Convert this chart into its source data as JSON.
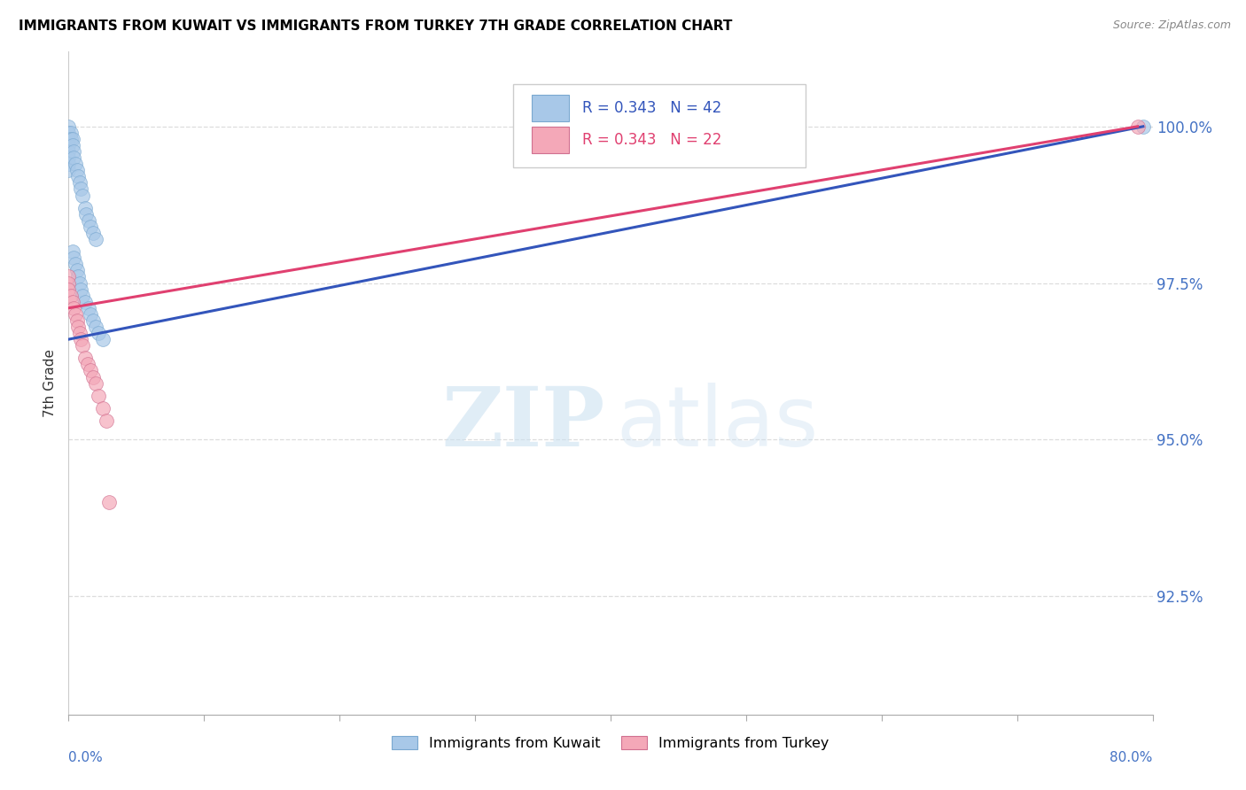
{
  "title": "IMMIGRANTS FROM KUWAIT VS IMMIGRANTS FROM TURKEY 7TH GRADE CORRELATION CHART",
  "source": "Source: ZipAtlas.com",
  "ylabel": "7th Grade",
  "kuwait_R": 0.343,
  "kuwait_N": 42,
  "turkey_R": 0.343,
  "turkey_N": 22,
  "kuwait_color": "#a8c8e8",
  "turkey_color": "#f4a8b8",
  "kuwait_line_color": "#3355bb",
  "turkey_line_color": "#e04070",
  "xlim": [
    0.0,
    0.8
  ],
  "ylim": [
    0.906,
    1.012
  ],
  "yticks": [
    0.925,
    0.95,
    0.975,
    1.0
  ],
  "ytick_labels": [
    "92.5%",
    "95.0%",
    "97.5%",
    "100.0%"
  ],
  "grid_color": "#dddddd",
  "legend_kuwait": "Immigrants from Kuwait",
  "legend_turkey": "Immigrants from Turkey",
  "kuwait_x": [
    0.0,
    0.0,
    0.0,
    0.0,
    0.0,
    0.0,
    0.0,
    0.0,
    0.002,
    0.002,
    0.003,
    0.003,
    0.004,
    0.004,
    0.005,
    0.006,
    0.007,
    0.008,
    0.009,
    0.01,
    0.012,
    0.013,
    0.015,
    0.016,
    0.018,
    0.02,
    0.003,
    0.004,
    0.005,
    0.006,
    0.007,
    0.008,
    0.009,
    0.01,
    0.012,
    0.015,
    0.016,
    0.018,
    0.02,
    0.022,
    0.025,
    0.793
  ],
  "kuwait_y": [
    1.0,
    0.999,
    0.998,
    0.997,
    0.996,
    0.995,
    0.994,
    0.993,
    0.999,
    0.998,
    0.998,
    0.997,
    0.996,
    0.995,
    0.994,
    0.993,
    0.992,
    0.991,
    0.99,
    0.989,
    0.987,
    0.986,
    0.985,
    0.984,
    0.983,
    0.982,
    0.98,
    0.979,
    0.978,
    0.977,
    0.976,
    0.975,
    0.974,
    0.973,
    0.972,
    0.971,
    0.97,
    0.969,
    0.968,
    0.967,
    0.966,
    1.0
  ],
  "turkey_x": [
    0.0,
    0.0,
    0.0,
    0.002,
    0.003,
    0.004,
    0.005,
    0.006,
    0.007,
    0.008,
    0.009,
    0.01,
    0.012,
    0.014,
    0.016,
    0.018,
    0.02,
    0.022,
    0.025,
    0.028,
    0.03,
    0.789
  ],
  "turkey_y": [
    0.976,
    0.975,
    0.974,
    0.973,
    0.972,
    0.971,
    0.97,
    0.969,
    0.968,
    0.967,
    0.966,
    0.965,
    0.963,
    0.962,
    0.961,
    0.96,
    0.959,
    0.957,
    0.955,
    0.953,
    0.94,
    1.0
  ],
  "kuw_line_x": [
    0.0,
    0.793
  ],
  "kuw_line_y": [
    0.966,
    1.0
  ],
  "tur_line_x": [
    0.0,
    0.789
  ],
  "tur_line_y": [
    0.971,
    1.0
  ]
}
